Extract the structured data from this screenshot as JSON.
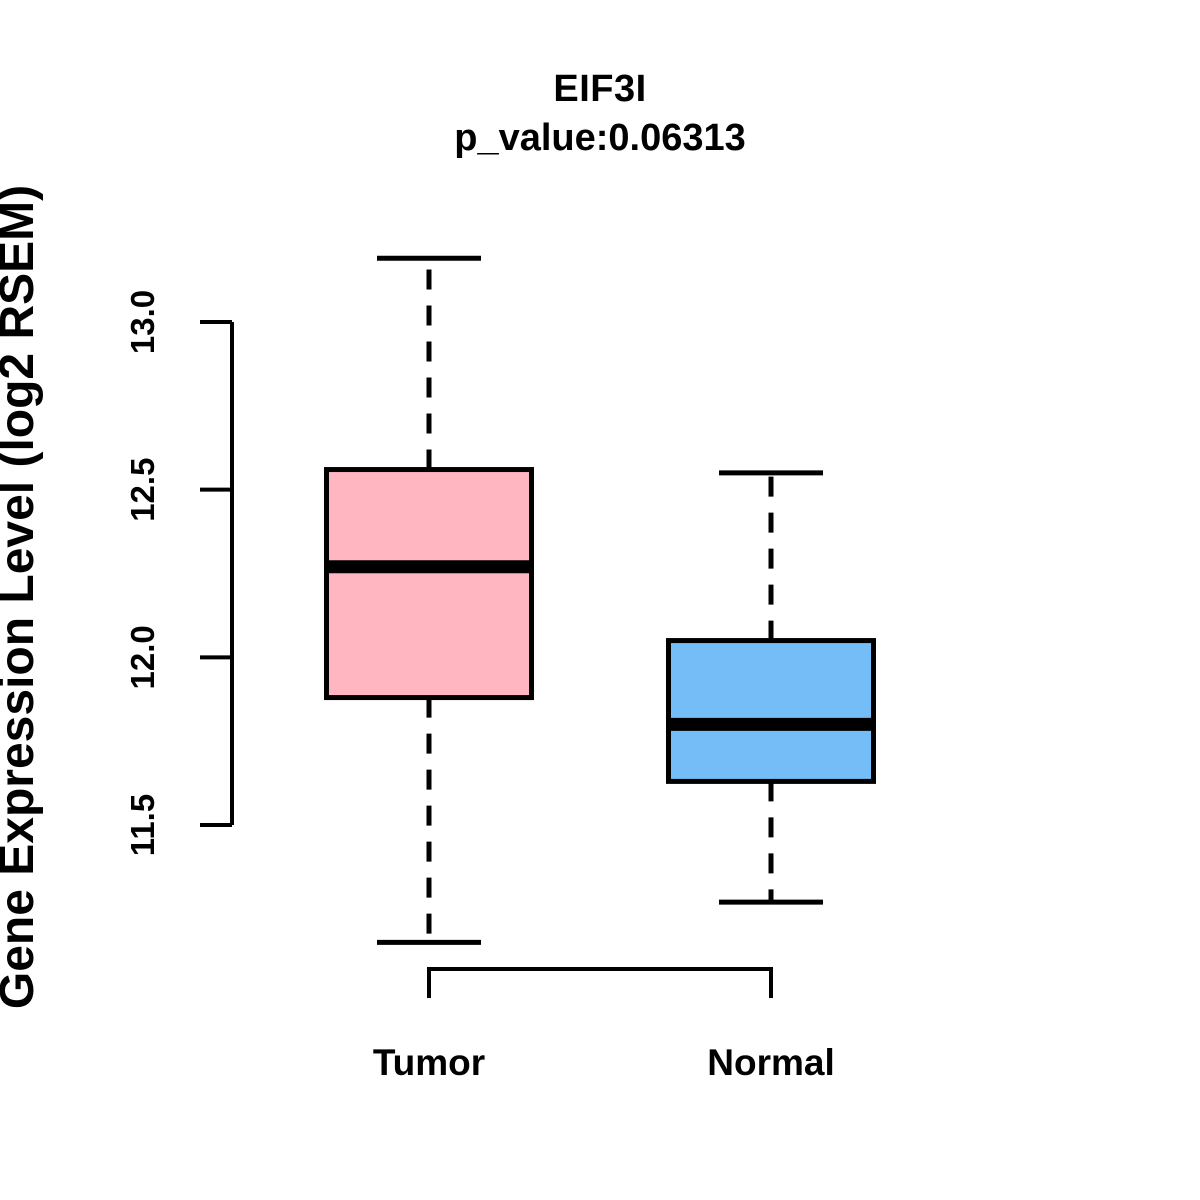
{
  "chart_data": {
    "type": "boxplot",
    "title": "EIF3I",
    "subtitle": "p_value:0.06313",
    "gene": "EIF3I",
    "p_value": "0.06313",
    "ylabel": "Gene Expression Level (log2 RSEM)",
    "xlabel": "",
    "categories": [
      "Tumor",
      "Normal"
    ],
    "y_ticks": [
      11.5,
      12.0,
      12.5,
      13.0
    ],
    "y_tick_labels": [
      "11.5",
      "12.0",
      "12.5",
      "13.0"
    ],
    "ylim": [
      11.05,
      13.3
    ],
    "grid": false,
    "legend": "none",
    "whisker_style": "dashed",
    "line_color": "#000000",
    "background_color": "#FFFFFF",
    "series": [
      {
        "name": "Tumor",
        "fill_color": "#FFB6C1",
        "whisker_low": 11.15,
        "q1": 11.88,
        "median": 12.27,
        "q3": 12.56,
        "whisker_high": 13.19
      },
      {
        "name": "Normal",
        "fill_color": "#74BDF6",
        "whisker_low": 11.27,
        "q1": 11.63,
        "median": 11.8,
        "q3": 12.05,
        "whisker_high": 12.55
      }
    ]
  }
}
